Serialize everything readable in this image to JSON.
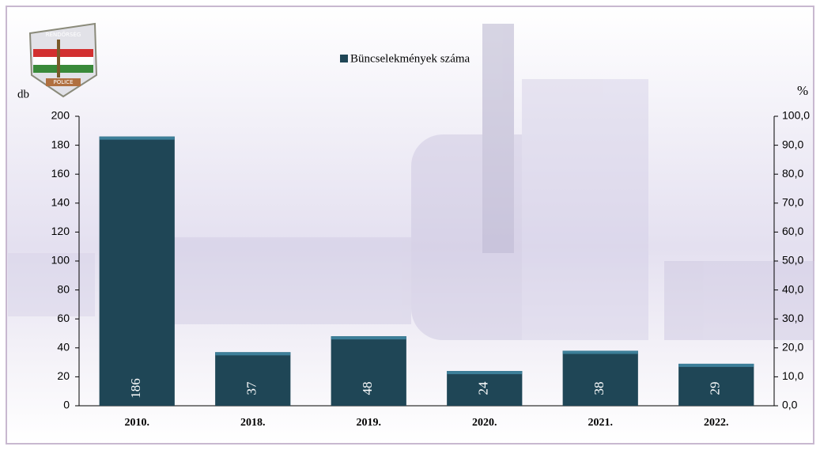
{
  "logo": {
    "top": "RENDŐRSÉG",
    "bottom": "POLICE"
  },
  "chart_data": {
    "type": "bar",
    "legend": "Büncselekmények száma",
    "y_label": "db",
    "y2_label": "%",
    "categories": [
      "2010.",
      "2018.",
      "2019.",
      "2020.",
      "2021.",
      "2022."
    ],
    "values": [
      186,
      37,
      48,
      24,
      38,
      29
    ],
    "color": "#1f4656",
    "ylim": [
      0,
      200
    ],
    "yticks": [
      0,
      20,
      40,
      60,
      80,
      100,
      120,
      140,
      160,
      180,
      200
    ],
    "y2lim": [
      0,
      100
    ],
    "y2ticks": [
      {
        "value": 0,
        "label": "0,0"
      },
      {
        "value": 10,
        "label": "10,0"
      },
      {
        "value": 20,
        "label": "20,0"
      },
      {
        "value": 30,
        "label": "30,0"
      },
      {
        "value": 40,
        "label": "40,0"
      },
      {
        "value": 50,
        "label": "50,0"
      },
      {
        "value": 60,
        "label": "60,0"
      },
      {
        "value": 70,
        "label": "70,0"
      },
      {
        "value": 80,
        "label": "80,0"
      },
      {
        "value": 90,
        "label": "90,0"
      },
      {
        "value": 100,
        "label": "100,0"
      }
    ]
  }
}
